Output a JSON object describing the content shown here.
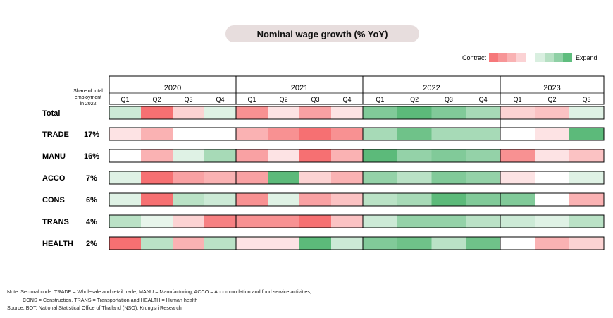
{
  "title": "Nominal wage growth (% YoY)",
  "legend": {
    "contract_label": "Contract",
    "expand_label": "Expand",
    "contract_colors": [
      "#f6787a",
      "#f79597",
      "#f9b2b3",
      "#fbd2d4"
    ],
    "expand_colors": [
      "#d9efe0",
      "#b6e0c3",
      "#8fd0a5",
      "#5fbd7e"
    ]
  },
  "share_header": [
    "Share of total",
    "employment",
    "in 2022"
  ],
  "chart_data": {
    "type": "heatmap",
    "title": "Nominal wage growth (% YoY)",
    "years": [
      {
        "label": "2020",
        "quarters": [
          "Q1",
          "Q2",
          "Q3",
          "Q4"
        ]
      },
      {
        "label": "2021",
        "quarters": [
          "Q1",
          "Q2",
          "Q3",
          "Q4"
        ]
      },
      {
        "label": "2022",
        "quarters": [
          "Q1",
          "Q2",
          "Q3",
          "Q4"
        ]
      },
      {
        "label": "2023",
        "quarters": [
          "Q1",
          "Q2",
          "Q3"
        ]
      }
    ],
    "scale": "intensity levels from -4 (strong contraction) to +4 (strong expansion)",
    "rows": [
      {
        "name": "Total",
        "share": "",
        "values": [
          1,
          -4,
          -1,
          0.5,
          -3,
          -0.5,
          -2.5,
          -0.5,
          3,
          4,
          3,
          2,
          -1,
          -1.5,
          0.5
        ]
      },
      {
        "name": "TRADE",
        "share": "17%",
        "values": [
          -0.5,
          -2,
          0,
          0,
          -2,
          -3,
          -4,
          -3,
          2,
          3.5,
          2,
          2,
          0,
          -0.5,
          4
        ]
      },
      {
        "name": "MANU",
        "share": "16%",
        "values": [
          0,
          -2,
          0.5,
          2,
          -2.5,
          -0.5,
          -4,
          -2,
          4,
          2.5,
          3,
          2.5,
          -3,
          -0.5,
          -1.5
        ]
      },
      {
        "name": "ACCO",
        "share": "7%",
        "values": [
          0.5,
          -4,
          -2.5,
          -2,
          -2.5,
          4,
          -1,
          -2,
          2.5,
          1.5,
          3,
          2.5,
          -0.5,
          0,
          0.5
        ]
      },
      {
        "name": "CONS",
        "share": "6%",
        "values": [
          0.5,
          -4,
          1.5,
          1,
          -3,
          0.5,
          -2.5,
          -1.5,
          1.5,
          2,
          4,
          3,
          3,
          0,
          -2
        ]
      },
      {
        "name": "TRANS",
        "share": "4%",
        "values": [
          1.5,
          0.3,
          -1,
          -3.5,
          -3,
          -3,
          -4,
          -1.5,
          1,
          2.5,
          2.5,
          1.5,
          1,
          0.5,
          1.5
        ]
      },
      {
        "name": "HEALTH",
        "share": "2%",
        "values": [
          -4,
          1.5,
          -2,
          1.5,
          -0.5,
          -0.5,
          4,
          1,
          3,
          3.5,
          1.5,
          3.5,
          0,
          -2,
          -1
        ]
      }
    ]
  },
  "notes": {
    "line1": "Note: Sectoral code: TRADE = Wholesale and retail trade, MANU = Manufacturing, ACCO = Accommodation and food service activities,",
    "line2": "CONS = Construction, TRANS = Transportation and HEALTH = Human health",
    "line3": "Source: BOT, National Statistical Office of Thailand (NSO), Krungsri Research"
  }
}
